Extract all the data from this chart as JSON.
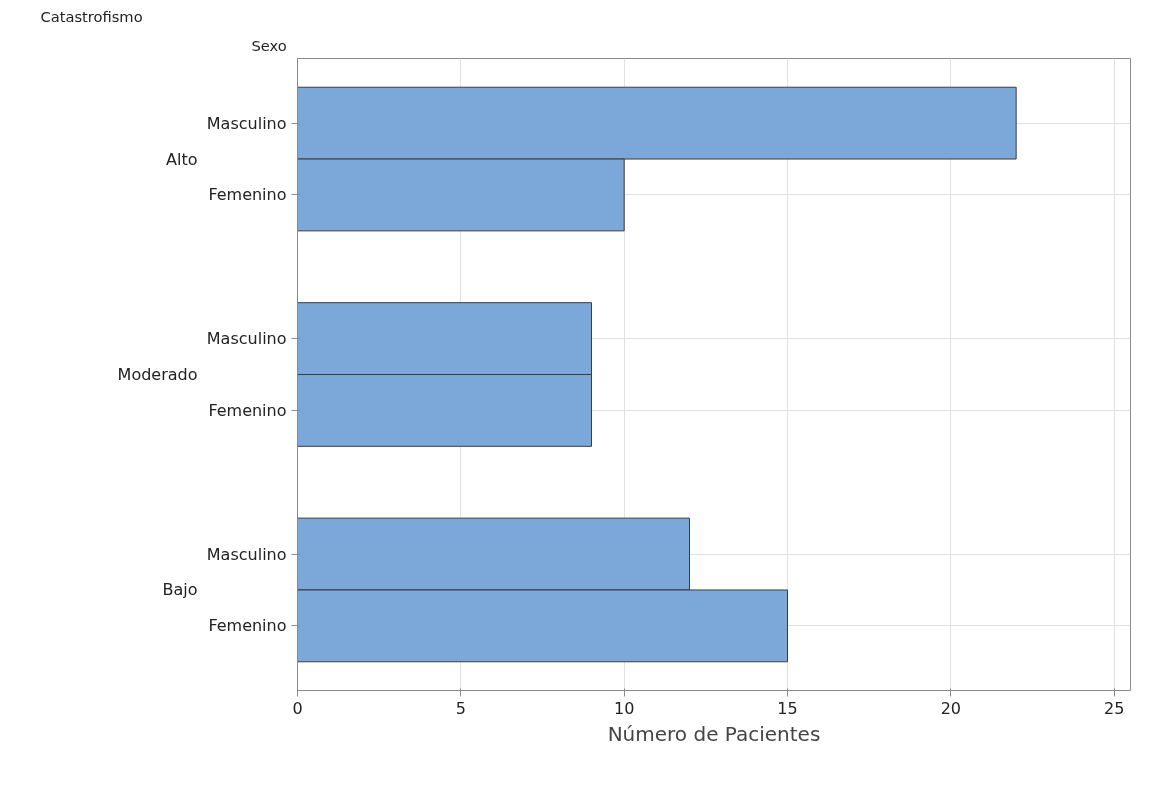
{
  "chart_data": {
    "type": "bar",
    "orientation": "horizontal",
    "xlabel": "Número de Pacientes",
    "categories": [
      "Masculino",
      "Femenino",
      null,
      "Masculino",
      "Femenino",
      null,
      "Masculino",
      "Femenino"
    ],
    "values": [
      22,
      10,
      null,
      9,
      9,
      null,
      12,
      15
    ],
    "color": "#7ba7d9",
    "annotations": [
      "Catastrofismo",
      "Sexo",
      "Alto",
      "Moderado",
      "Bajo"
    ],
    "xlim": [
      0,
      25.5
    ],
    "xticks": [
      0,
      5,
      10,
      15,
      20,
      25
    ],
    "grid": true
  }
}
